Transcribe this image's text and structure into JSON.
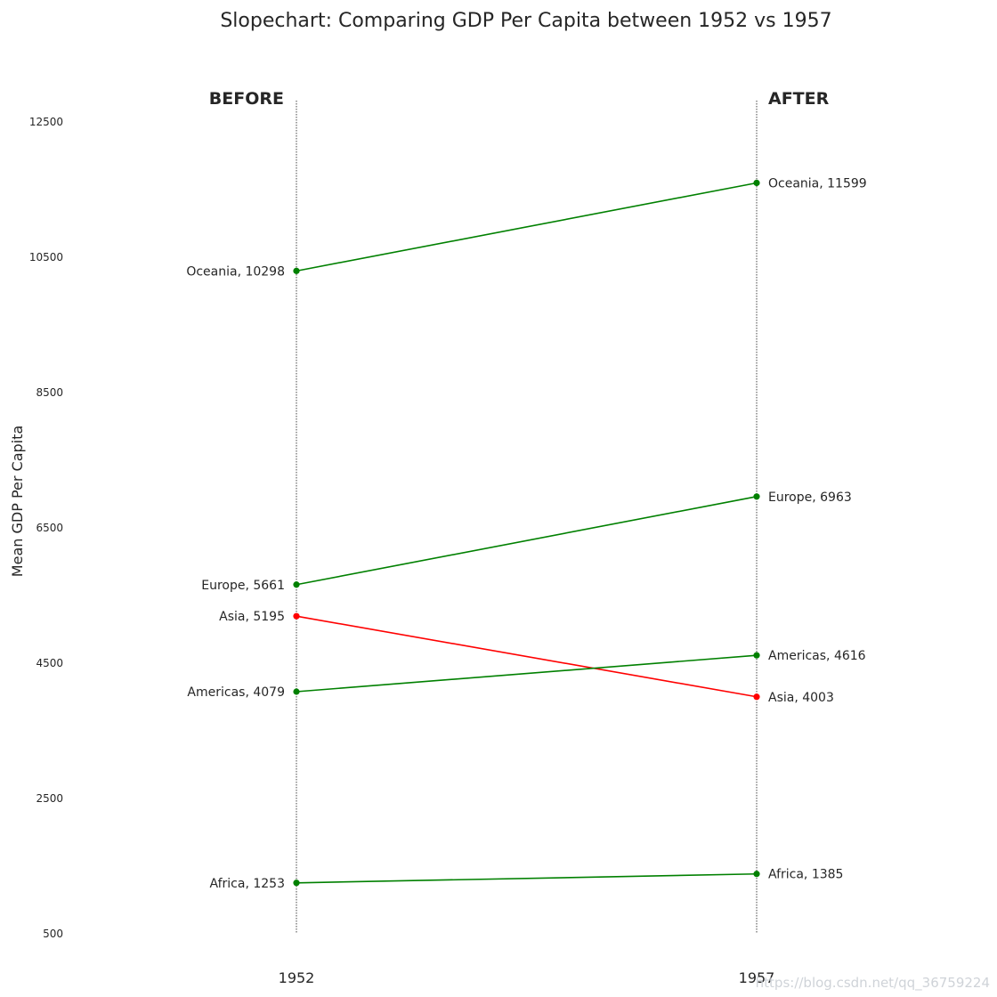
{
  "chart_data": {
    "type": "slope",
    "title": "Slopechart: Comparing GDP Per Capita between 1952 vs 1957",
    "ylabel": "Mean GDP Per Capita",
    "ylim": [
      500,
      13000
    ],
    "yticks": [
      "12500",
      "10500",
      "8500",
      "6500",
      "4500",
      "2500",
      "500"
    ],
    "x": [
      "1952",
      "1957"
    ],
    "left_header": "BEFORE",
    "right_header": "AFTER",
    "colors": {
      "increase": "#008000",
      "decrease": "#ff0000",
      "guide": "#444444"
    },
    "series": [
      {
        "name": "Oceania",
        "values": [
          10298,
          11599
        ]
      },
      {
        "name": "Europe",
        "values": [
          5661,
          6963
        ]
      },
      {
        "name": "Asia",
        "values": [
          5195,
          4003
        ]
      },
      {
        "name": "Americas",
        "values": [
          4079,
          4616
        ]
      },
      {
        "name": "Africa",
        "values": [
          1253,
          1385
        ]
      }
    ]
  },
  "watermark": "https://blog.csdn.net/qq_36759224"
}
